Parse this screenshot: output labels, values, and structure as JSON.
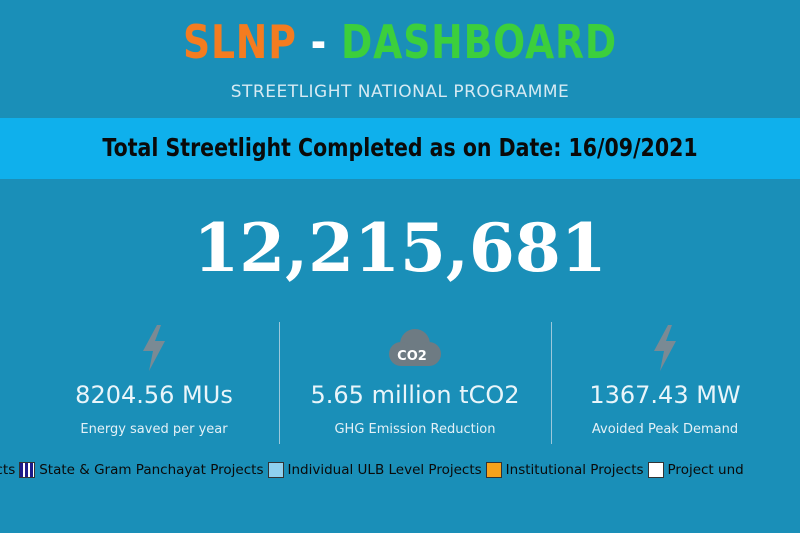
{
  "header": {
    "title_part1": "SLNP",
    "title_sep": " - ",
    "title_part2": "DASHBOARD",
    "subtitle": "STREETLIGHT NATIONAL PROGRAMME"
  },
  "banner": {
    "text": "Total Streetlight Completed as on Date: 16/09/2021"
  },
  "total": {
    "value": "12,215,681"
  },
  "stats": [
    {
      "icon": "lightning-icon",
      "value": "8204.56 MUs",
      "label": "Energy saved per year"
    },
    {
      "icon": "co2-cloud-icon",
      "icon_text": "CO2",
      "value": "5.65 million tCO2",
      "label": "GHG Emission Reduction"
    },
    {
      "icon": "lightning-icon",
      "value": "1367.43 MW",
      "label": "Avoided Peak Demand"
    }
  ],
  "legend": [
    {
      "label": "Projects",
      "swatch": "none"
    },
    {
      "label": "State & Gram Panchayat Projects",
      "swatch": "navy-stripes"
    },
    {
      "label": "Individual ULB Level Projects",
      "swatch": "#8fd0ee"
    },
    {
      "label": "Institutional Projects",
      "swatch": "#f7a21b"
    },
    {
      "label": "Project und",
      "swatch": "#ffffff"
    }
  ],
  "colors": {
    "background": "#1a8fb8",
    "banner": "#0fb0ec",
    "title_orange": "#f47c20",
    "title_green": "#3ccf3c",
    "icon_gray": "#7a8a94"
  }
}
